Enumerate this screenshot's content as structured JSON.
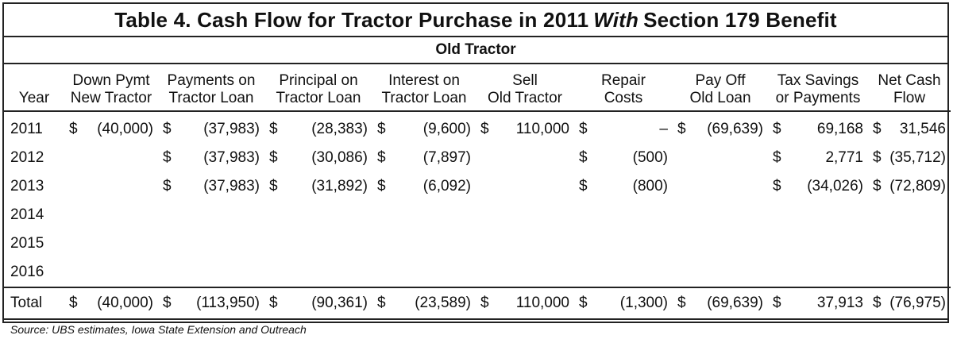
{
  "title": {
    "before": "Table 4. Cash Flow for Tractor Purchase in 2011",
    "emphasis": "With",
    "after": "Section 179 Benefit"
  },
  "section": "Old Tractor",
  "columns": [
    {
      "line1": "",
      "line2": "Year"
    },
    {
      "line1": "Down Pymt",
      "line2": "New Tractor"
    },
    {
      "line1": "Payments on",
      "line2": "Tractor Loan"
    },
    {
      "line1": "Principal on",
      "line2": "Tractor Loan"
    },
    {
      "line1": "Interest on",
      "line2": "Tractor Loan"
    },
    {
      "line1": "Sell",
      "line2": "Old Tractor"
    },
    {
      "line1": "Repair",
      "line2": "Costs"
    },
    {
      "line1": "Pay Off",
      "line2": "Old Loan"
    },
    {
      "line1": "Tax Savings",
      "line2": "or Payments"
    },
    {
      "line1": "Net Cash",
      "line2": "Flow"
    }
  ],
  "rows": [
    {
      "year": "2011",
      "cells": [
        {
          "cur": "$",
          "val": "(40,000)"
        },
        {
          "cur": "$",
          "val": "(37,983)"
        },
        {
          "cur": "$",
          "val": "(28,383)"
        },
        {
          "cur": "$",
          "val": "(9,600)"
        },
        {
          "cur": "$",
          "val": "110,000"
        },
        {
          "cur": "$",
          "val": "–"
        },
        {
          "cur": "$",
          "val": "(69,639)"
        },
        {
          "cur": "$",
          "val": "69,168"
        },
        {
          "cur": "$",
          "val": "31,546"
        }
      ]
    },
    {
      "year": "2012",
      "cells": [
        {
          "cur": "",
          "val": ""
        },
        {
          "cur": "$",
          "val": "(37,983)"
        },
        {
          "cur": "$",
          "val": "(30,086)"
        },
        {
          "cur": "$",
          "val": "(7,897)"
        },
        {
          "cur": "",
          "val": ""
        },
        {
          "cur": "$",
          "val": "(500)"
        },
        {
          "cur": "",
          "val": ""
        },
        {
          "cur": "$",
          "val": "2,771"
        },
        {
          "cur": "$",
          "val": "(35,712)"
        }
      ]
    },
    {
      "year": "2013",
      "cells": [
        {
          "cur": "",
          "val": ""
        },
        {
          "cur": "$",
          "val": "(37,983)"
        },
        {
          "cur": "$",
          "val": "(31,892)"
        },
        {
          "cur": "$",
          "val": "(6,092)"
        },
        {
          "cur": "",
          "val": ""
        },
        {
          "cur": "$",
          "val": "(800)"
        },
        {
          "cur": "",
          "val": ""
        },
        {
          "cur": "$",
          "val": "(34,026)"
        },
        {
          "cur": "$",
          "val": "(72,809)"
        }
      ]
    },
    {
      "year": "2014",
      "cells": [
        {
          "cur": "",
          "val": ""
        },
        {
          "cur": "",
          "val": ""
        },
        {
          "cur": "",
          "val": ""
        },
        {
          "cur": "",
          "val": ""
        },
        {
          "cur": "",
          "val": ""
        },
        {
          "cur": "",
          "val": ""
        },
        {
          "cur": "",
          "val": ""
        },
        {
          "cur": "",
          "val": ""
        },
        {
          "cur": "",
          "val": ""
        }
      ]
    },
    {
      "year": "2015",
      "cells": [
        {
          "cur": "",
          "val": ""
        },
        {
          "cur": "",
          "val": ""
        },
        {
          "cur": "",
          "val": ""
        },
        {
          "cur": "",
          "val": ""
        },
        {
          "cur": "",
          "val": ""
        },
        {
          "cur": "",
          "val": ""
        },
        {
          "cur": "",
          "val": ""
        },
        {
          "cur": "",
          "val": ""
        },
        {
          "cur": "",
          "val": ""
        }
      ]
    },
    {
      "year": "2016",
      "cells": [
        {
          "cur": "",
          "val": ""
        },
        {
          "cur": "",
          "val": ""
        },
        {
          "cur": "",
          "val": ""
        },
        {
          "cur": "",
          "val": ""
        },
        {
          "cur": "",
          "val": ""
        },
        {
          "cur": "",
          "val": ""
        },
        {
          "cur": "",
          "val": ""
        },
        {
          "cur": "",
          "val": ""
        },
        {
          "cur": "",
          "val": ""
        }
      ]
    }
  ],
  "total": {
    "label": "Total",
    "cells": [
      {
        "cur": "$",
        "val": "(40,000)"
      },
      {
        "cur": "$",
        "val": "(113,950)"
      },
      {
        "cur": "$",
        "val": "(90,361)"
      },
      {
        "cur": "$",
        "val": "(23,589)"
      },
      {
        "cur": "$",
        "val": "110,000"
      },
      {
        "cur": "$",
        "val": "(1,300)"
      },
      {
        "cur": "$",
        "val": "(69,639)"
      },
      {
        "cur": "$",
        "val": "37,913"
      },
      {
        "cur": "$",
        "val": "(76,975)"
      }
    ]
  },
  "source": "Source: UBS estimates, Iowa State Extension and Outreach"
}
